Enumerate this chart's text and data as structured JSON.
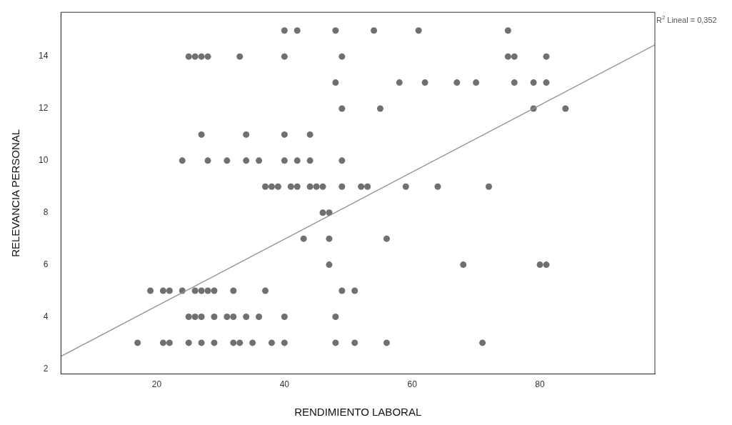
{
  "chart_data": {
    "type": "scatter",
    "xlabel": "RENDIMIENTO LABORAL",
    "ylabel": "RELEVANCIA PERSONAL",
    "annotations": [
      "R$^{2}$ Lineal = 0,352"
    ],
    "xlim": [
      5,
      98
    ],
    "ylim": [
      1.8,
      15.7
    ],
    "xticks": [
      20,
      40,
      60,
      80
    ],
    "yticks": [
      2,
      4,
      6,
      8,
      10,
      12,
      14
    ],
    "grid": false,
    "legend": false,
    "series": [
      {
        "marker": "circle",
        "color": "#707070",
        "x": [
          40,
          42,
          48,
          54,
          61,
          75,
          25,
          26,
          27,
          28,
          33,
          40,
          49,
          75,
          76,
          81,
          48,
          58,
          62,
          67,
          70,
          76,
          79,
          81,
          49,
          55,
          79,
          84,
          27,
          34,
          40,
          44,
          24,
          28,
          31,
          34,
          36,
          40,
          42,
          44,
          49,
          37,
          38,
          39,
          41,
          42,
          44,
          45,
          46,
          49,
          52,
          53,
          59,
          64,
          72,
          46,
          47,
          43,
          47,
          56,
          47,
          68,
          80,
          81,
          19,
          21,
          22,
          24,
          26,
          27,
          28,
          29,
          32,
          37,
          49,
          51,
          25,
          26,
          27,
          29,
          31,
          32,
          34,
          36,
          40,
          48,
          17,
          21,
          22,
          25,
          27,
          29,
          32,
          33,
          35,
          38,
          40,
          48,
          51,
          56,
          71
        ],
        "values": [
          15,
          15,
          15,
          15,
          15,
          15,
          14,
          14,
          14,
          14,
          14,
          14,
          14,
          14,
          14,
          14,
          13,
          13,
          13,
          13,
          13,
          13,
          13,
          13,
          12,
          12,
          12,
          12,
          11,
          11,
          11,
          11,
          10,
          10,
          10,
          10,
          10,
          10,
          10,
          10,
          10,
          9,
          9,
          9,
          9,
          9,
          9,
          9,
          9,
          9,
          9,
          9,
          9,
          9,
          9,
          8,
          8,
          7,
          7,
          7,
          6,
          6,
          6,
          6,
          5,
          5,
          5,
          5,
          5,
          5,
          5,
          5,
          5,
          5,
          5,
          5,
          4,
          4,
          4,
          4,
          4,
          4,
          4,
          4,
          4,
          4,
          3,
          3,
          3,
          3,
          3,
          3,
          3,
          3,
          3,
          3,
          3,
          3,
          3,
          3,
          3
        ]
      },
      {
        "type": "line",
        "color": "#909090",
        "x": [
          5,
          98
        ],
        "values": [
          2.48,
          14.45
        ]
      }
    ]
  }
}
